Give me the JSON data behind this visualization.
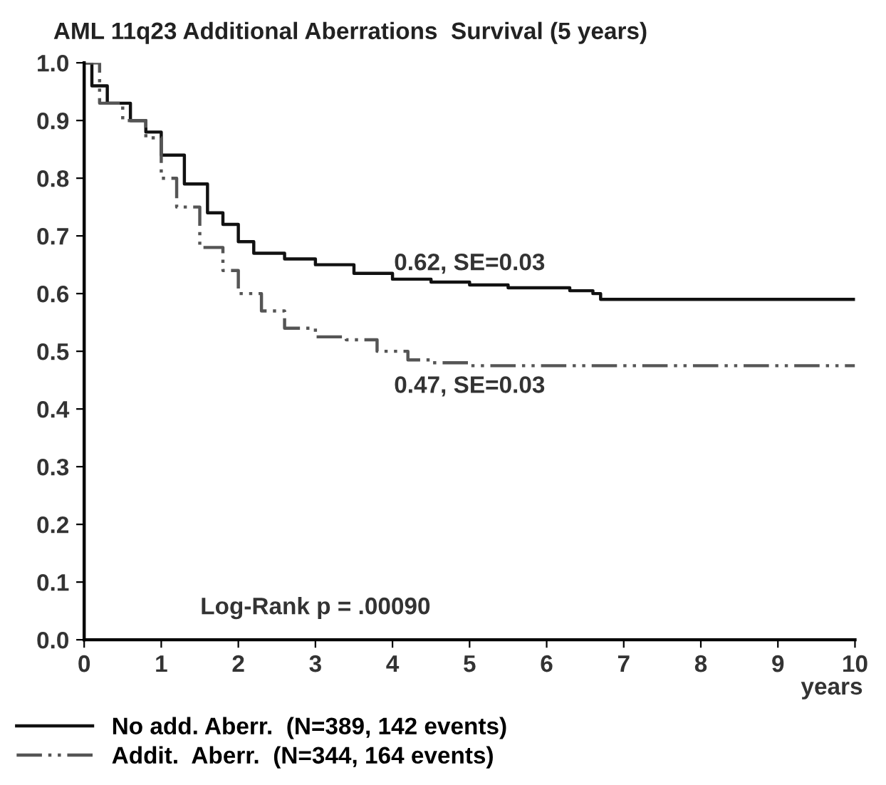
{
  "chart_data": {
    "type": "step",
    "title": "AML 11q23 Additional Aberrations  Survival (5 years)",
    "xlabel": "years",
    "xlim": [
      0,
      10
    ],
    "xticks": [
      0,
      1,
      2,
      3,
      4,
      5,
      6,
      7,
      8,
      9,
      10
    ],
    "ylim": [
      0,
      1.0
    ],
    "yticks": [
      {
        "value": 0,
        "label": "0.0"
      },
      0.1,
      0.2,
      0.3,
      0.4,
      0.5,
      0.6,
      0.7,
      0.8,
      0.9,
      {
        "value": 1,
        "label": "1.0"
      }
    ],
    "grid": false,
    "legend": "bottom",
    "series": [
      {
        "name": "No add. Aberr.  (N=389, 142 events)",
        "color": "#111111",
        "line_style": "solid",
        "x": [
          0,
          0.1,
          0.3,
          0.6,
          0.8,
          1.0,
          1.3,
          1.6,
          1.8,
          2.0,
          2.2,
          2.6,
          3.0,
          3.5,
          4.0,
          4.5,
          5.0,
          5.5,
          6.3,
          6.6,
          6.7,
          10
        ],
        "values": [
          1.0,
          0.96,
          0.93,
          0.9,
          0.88,
          0.84,
          0.79,
          0.74,
          0.72,
          0.69,
          0.67,
          0.66,
          0.65,
          0.635,
          0.625,
          0.62,
          0.615,
          0.61,
          0.605,
          0.6,
          0.59,
          0.59
        ]
      },
      {
        "name": "Addit.  Aberr.  (N=344, 164 events)",
        "color": "#555555",
        "line_style": "dashed",
        "x": [
          0,
          0.2,
          0.5,
          0.8,
          1.0,
          1.2,
          1.5,
          1.8,
          2.0,
          2.3,
          2.6,
          3.0,
          3.4,
          3.8,
          4.2,
          4.5,
          5.0,
          10
        ],
        "values": [
          1.0,
          0.93,
          0.9,
          0.87,
          0.8,
          0.75,
          0.68,
          0.64,
          0.6,
          0.57,
          0.54,
          0.525,
          0.52,
          0.5,
          0.485,
          0.48,
          0.475,
          0.475
        ]
      }
    ],
    "annotations": [
      {
        "text": "0.62, SE=0.03",
        "x": 5,
        "y": 0.615
      },
      {
        "text": "0.47, SE=0.03",
        "x": 5,
        "y": 0.475
      },
      "Log-Rank p = .00090"
    ]
  }
}
